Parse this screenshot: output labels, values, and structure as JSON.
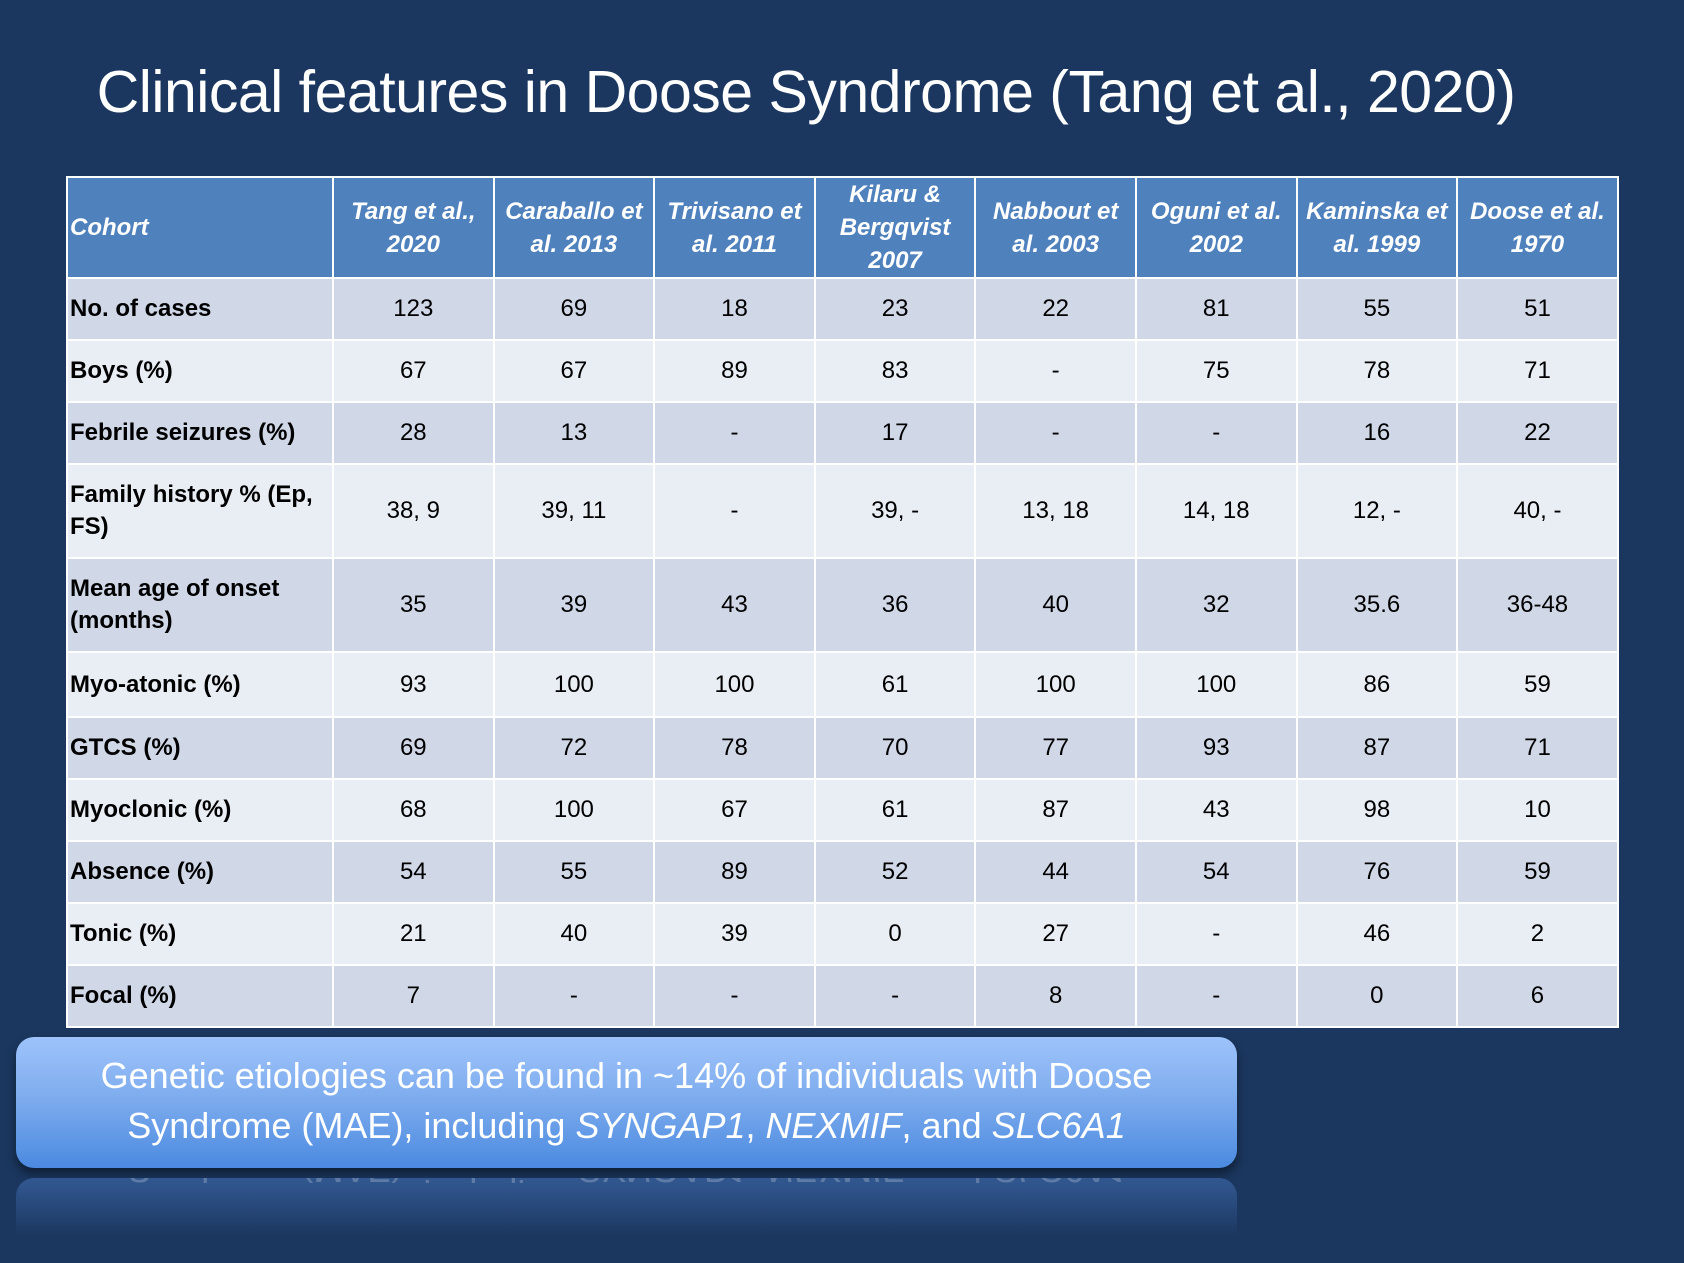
{
  "slide": {
    "title": "Clinical features in Doose Syndrome (Tang et al., 2020)"
  },
  "table": {
    "header": {
      "first": "Cohort",
      "cohorts": [
        "Tang et al., 2020",
        "Caraballo et al. 2013",
        "Trivisano et al. 2011",
        "Kilaru & Bergqvist 2007",
        "Nabbout et al. 2003",
        "Oguni et al. 2002",
        "Kaminska et al. 1999",
        "Doose et al. 1970"
      ]
    },
    "rows": [
      {
        "label": "No. of cases",
        "values": [
          "123",
          "69",
          "18",
          "23",
          "22",
          "81",
          "55",
          "51"
        ]
      },
      {
        "label": "Boys (%)",
        "values": [
          "67",
          "67",
          "89",
          "83",
          "-",
          "75",
          "78",
          "71"
        ]
      },
      {
        "label": "Febrile seizures (%)",
        "values": [
          "28",
          "13",
          "-",
          "17",
          "-",
          "-",
          "16",
          "22"
        ]
      },
      {
        "label": "Family history % (Ep, FS)",
        "values": [
          "38, 9",
          "39, 11",
          "-",
          "39, -",
          "13, 18",
          "14, 18",
          "12, -",
          "40, -"
        ]
      },
      {
        "label": "Mean age of onset (months)",
        "values": [
          "35",
          "39",
          "43",
          "36",
          "40",
          "32",
          "35.6",
          "36-48"
        ]
      },
      {
        "label": "Myo-atonic (%)",
        "values": [
          "93",
          "100",
          "100",
          "61",
          "100",
          "100",
          "86",
          "59"
        ]
      },
      {
        "label": "GTCS (%)",
        "values": [
          "69",
          "72",
          "78",
          "70",
          "77",
          "93",
          "87",
          "71"
        ]
      },
      {
        "label": "Myoclonic (%)",
        "values": [
          "68",
          "100",
          "67",
          "61",
          "87",
          "43",
          "98",
          "10"
        ]
      },
      {
        "label": "Absence (%)",
        "values": [
          "54",
          "55",
          "89",
          "52",
          "44",
          "54",
          "76",
          "59"
        ]
      },
      {
        "label": "Tonic (%)",
        "values": [
          "21",
          "40",
          "39",
          "0",
          "27",
          "-",
          "46",
          "2"
        ]
      },
      {
        "label": "Focal (%)",
        "values": [
          "7",
          "-",
          "-",
          "-",
          "8",
          "-",
          "0",
          "6"
        ]
      }
    ]
  },
  "callout": {
    "line1": "Genetic etiologies can be found in ~14% of individuals with Doose",
    "line2_prefix": "Syndrome (MAE), including ",
    "gene1": "SYNGAP1",
    "sep1": ", ",
    "gene2": "NEXMIF",
    "sep2": ", and ",
    "gene3": "SLC6A1"
  },
  "colors": {
    "background": "#1b375f",
    "header": "#4f81bd",
    "row_odd": "#d0d8e8",
    "row_even": "#e9edf4"
  }
}
